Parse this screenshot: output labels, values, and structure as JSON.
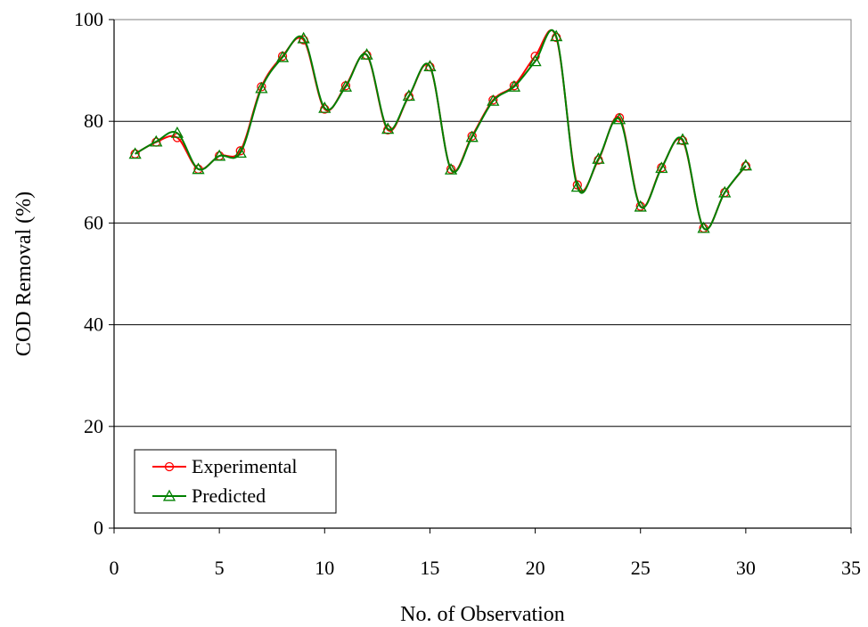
{
  "chart_data": {
    "type": "line",
    "title": "",
    "xlabel": "No. of Observation",
    "ylabel": "COD Removal (%)",
    "xlim": [
      0,
      35
    ],
    "ylim": [
      0,
      100
    ],
    "x_ticks": [
      "0",
      "5",
      "10",
      "15",
      "20",
      "25",
      "30",
      "35"
    ],
    "y_ticks": [
      "0",
      "20",
      "40",
      "60",
      "80",
      "100"
    ],
    "grid": "horizontal",
    "legend_position": "bottom-left",
    "x": [
      1,
      2,
      3,
      4,
      5,
      6,
      7,
      8,
      9,
      10,
      11,
      12,
      13,
      14,
      15,
      16,
      17,
      18,
      19,
      20,
      21,
      22,
      23,
      24,
      25,
      26,
      27,
      28,
      29,
      30
    ],
    "series": [
      {
        "name": "Experimental",
        "color": "#ff0000",
        "marker": "circle",
        "values": [
          73.6,
          75.9,
          76.8,
          70.6,
          73.2,
          74.2,
          86.8,
          92.8,
          96.0,
          82.4,
          87.0,
          93.0,
          78.3,
          84.9,
          90.7,
          70.6,
          77.1,
          84.2,
          87.0,
          92.8,
          96.5,
          67.5,
          72.4,
          80.7,
          63.3,
          70.9,
          76.2,
          59.0,
          66.0,
          71.2
        ]
      },
      {
        "name": "Predicted",
        "color": "#008000",
        "marker": "triangle",
        "values": [
          73.6,
          76.0,
          77.7,
          70.6,
          73.2,
          73.8,
          86.5,
          92.6,
          96.3,
          82.6,
          86.8,
          93.1,
          78.5,
          85.0,
          90.8,
          70.5,
          76.9,
          84.0,
          86.8,
          91.8,
          96.7,
          67.1,
          72.6,
          80.4,
          63.2,
          70.8,
          76.4,
          59.0,
          66.0,
          71.3
        ]
      }
    ]
  }
}
